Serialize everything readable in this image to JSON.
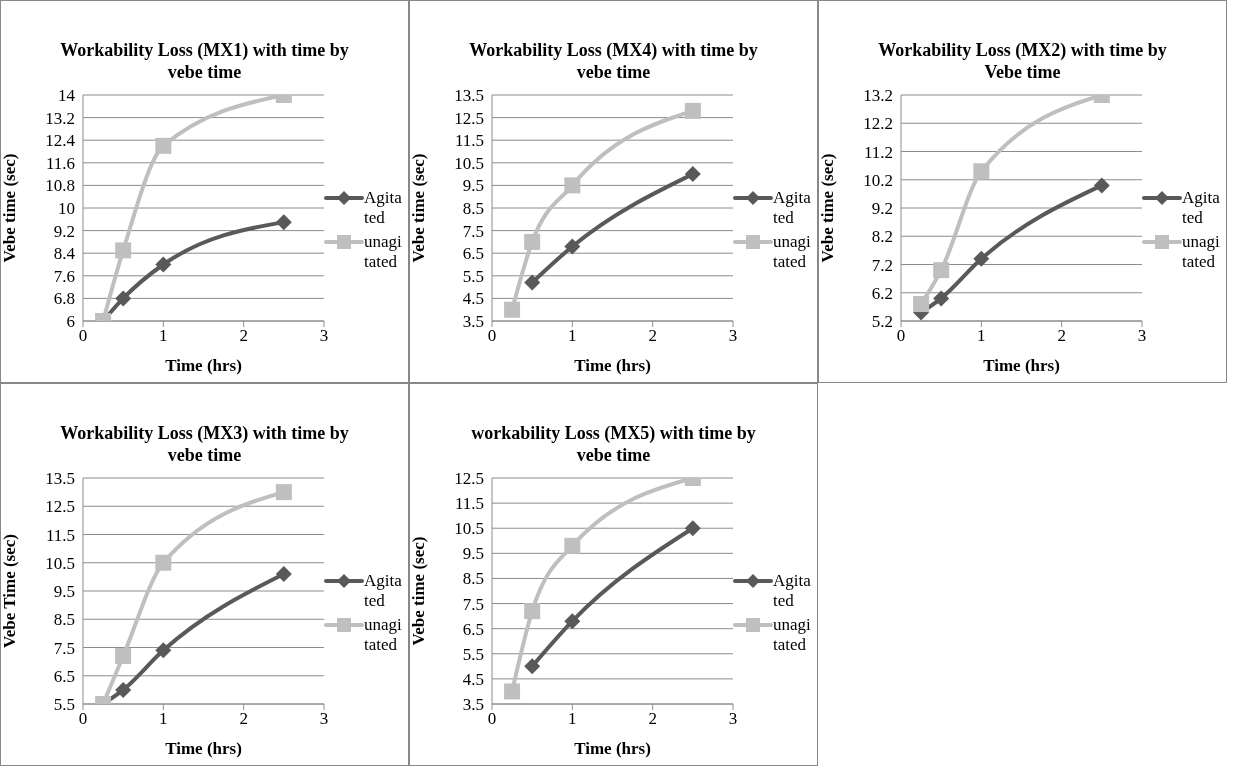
{
  "chart_data": [
    {
      "type": "line",
      "title": "Workability Loss (MX1) with time by vebe time",
      "xlabel": "Time (hrs)",
      "ylabel": "Vebe time (sec)",
      "x": [
        0.25,
        0.5,
        1,
        2.5
      ],
      "xlim": [
        0,
        3
      ],
      "xticks": [
        0,
        1,
        2,
        3
      ],
      "ylim": [
        6,
        14
      ],
      "yticks": [
        6,
        6.8,
        7.6,
        8.4,
        9.2,
        10,
        10.8,
        11.6,
        12.4,
        13.2,
        14
      ],
      "grid": "y",
      "legend": "right",
      "series": [
        {
          "name": "Agitated",
          "color": "#595959",
          "marker": "diamond",
          "values": [
            6,
            6.8,
            8,
            9.5
          ]
        },
        {
          "name": "unagitated",
          "color": "#bfbfbf",
          "marker": "square",
          "values": [
            6,
            8.5,
            12.2,
            14
          ]
        }
      ]
    },
    {
      "type": "line",
      "title": "Workability Loss (MX4) with time by vebe time",
      "xlabel": "Time (hrs)",
      "ylabel": "Vebe time (sec)",
      "x": [
        0.25,
        0.5,
        1,
        2.5
      ],
      "xlim": [
        0,
        3
      ],
      "xticks": [
        0,
        1,
        2,
        3
      ],
      "ylim": [
        3.5,
        13.5
      ],
      "yticks": [
        3.5,
        4.5,
        5.5,
        6.5,
        7.5,
        8.5,
        9.5,
        10.5,
        11.5,
        12.5,
        13.5
      ],
      "grid": "y",
      "legend": "right",
      "series": [
        {
          "name": "Agitated",
          "color": "#595959",
          "marker": "diamond",
          "values": [
            null,
            5.2,
            6.8,
            10
          ]
        },
        {
          "name": "unagitated",
          "color": "#bfbfbf",
          "marker": "square",
          "values": [
            4,
            7,
            9.5,
            12.8
          ]
        }
      ]
    },
    {
      "type": "line",
      "title": "Workability Loss (MX2) with time by Vebe time",
      "xlabel": "Time (hrs)",
      "ylabel": "Vebe time (sec)",
      "x": [
        0.25,
        0.5,
        1,
        2.5
      ],
      "xlim": [
        0,
        3
      ],
      "xticks": [
        0,
        1,
        2,
        3
      ],
      "ylim": [
        5.2,
        13.2
      ],
      "yticks": [
        5.2,
        6.2,
        7.2,
        8.2,
        9.2,
        10.2,
        11.2,
        12.2,
        13.2
      ],
      "grid": "y",
      "legend": "right",
      "series": [
        {
          "name": "Agitated",
          "color": "#595959",
          "marker": "diamond",
          "values": [
            5.5,
            6,
            7.4,
            10
          ]
        },
        {
          "name": "unagitated",
          "color": "#bfbfbf",
          "marker": "square",
          "values": [
            5.8,
            7,
            10.5,
            13.2
          ]
        }
      ]
    },
    {
      "type": "line",
      "title": "Workability Loss (MX3) with time by vebe time",
      "xlabel": "Time (hrs)",
      "ylabel": "Vebe Time (sec)",
      "x": [
        0.25,
        0.5,
        1,
        2.5
      ],
      "xlim": [
        0,
        3
      ],
      "xticks": [
        0,
        1,
        2,
        3
      ],
      "ylim": [
        5.5,
        13.5
      ],
      "yticks": [
        5.5,
        6.5,
        7.5,
        8.5,
        9.5,
        10.5,
        11.5,
        12.5,
        13.5
      ],
      "grid": "y",
      "legend": "right",
      "series": [
        {
          "name": "Agitated",
          "color": "#595959",
          "marker": "diamond",
          "values": [
            5.5,
            6,
            7.4,
            10.1
          ]
        },
        {
          "name": "unagitated",
          "color": "#bfbfbf",
          "marker": "square",
          "values": [
            5.5,
            7.2,
            10.5,
            13
          ]
        }
      ]
    },
    {
      "type": "line",
      "title": "workability Loss (MX5) with time by vebe time",
      "xlabel": "Time (hrs)",
      "ylabel": "Vebe time (sec)",
      "x": [
        0.25,
        0.5,
        1,
        2.5
      ],
      "xlim": [
        0,
        3
      ],
      "xticks": [
        0,
        1,
        2,
        3
      ],
      "ylim": [
        3.5,
        12.5
      ],
      "yticks": [
        3.5,
        4.5,
        5.5,
        6.5,
        7.5,
        8.5,
        9.5,
        10.5,
        11.5,
        12.5
      ],
      "grid": "y",
      "legend": "right",
      "series": [
        {
          "name": "Agitated",
          "color": "#595959",
          "marker": "diamond",
          "values": [
            null,
            5,
            6.8,
            10.5
          ]
        },
        {
          "name": "unagitated",
          "color": "#bfbfbf",
          "marker": "square",
          "values": [
            4,
            7.2,
            9.8,
            12.5
          ]
        }
      ]
    }
  ]
}
